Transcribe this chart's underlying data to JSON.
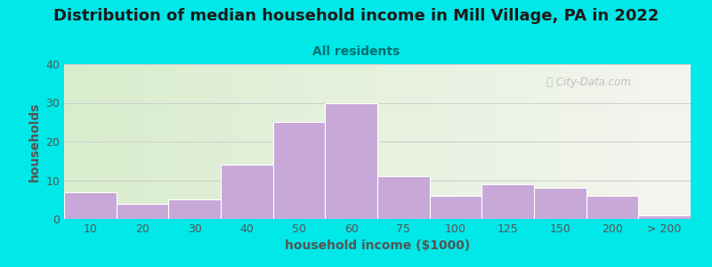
{
  "title": "Distribution of median household income in Mill Village, PA in 2022",
  "subtitle": "All residents",
  "xlabel": "household income ($1000)",
  "ylabel": "households",
  "bar_labels": [
    "10",
    "20",
    "30",
    "40",
    "50",
    "60",
    "75",
    "100",
    "125",
    "150",
    "200",
    "> 200"
  ],
  "bar_values": [
    7,
    4,
    5,
    14,
    25,
    30,
    11,
    6,
    9,
    8,
    6,
    1
  ],
  "bar_color": "#c8a8d8",
  "bar_edgecolor": "#ffffff",
  "ylim": [
    0,
    40
  ],
  "yticks": [
    0,
    10,
    20,
    30,
    40
  ],
  "bg_outer": "#00e8e8",
  "bg_plot_left": "#d8edcc",
  "bg_plot_right": "#f5f5f0",
  "title_color": "#1a1a1a",
  "subtitle_color": "#007070",
  "axis_label_color": "#555555",
  "tick_color": "#555555",
  "watermark": "City-Data.com",
  "title_fontsize": 13,
  "subtitle_fontsize": 10,
  "axis_label_fontsize": 10
}
